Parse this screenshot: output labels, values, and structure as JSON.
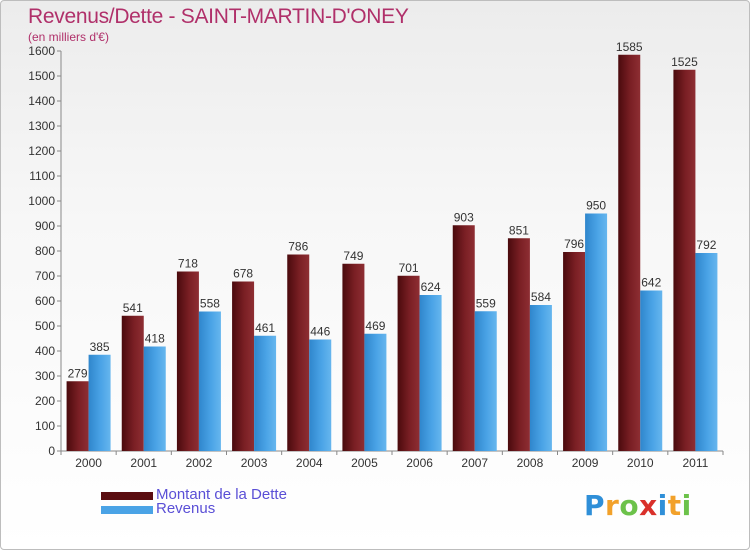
{
  "header": {
    "title": "Revenus/Dette - SAINT-MARTIN-D'ONEY",
    "subtitle": "(en milliers d'€)"
  },
  "chart_data": {
    "type": "bar",
    "title": "Revenus/Dette - SAINT-MARTIN-D'ONEY",
    "subtitle": "(en milliers d'€)",
    "categories": [
      "2000",
      "2001",
      "2002",
      "2003",
      "2004",
      "2005",
      "2006",
      "2007",
      "2008",
      "2009",
      "2010",
      "2011"
    ],
    "series": [
      {
        "name": "Montant de la Dette",
        "color": "#7a1f24",
        "values": [
          279,
          541,
          718,
          678,
          786,
          749,
          701,
          903,
          851,
          796,
          1585,
          1525
        ]
      },
      {
        "name": "Revenus",
        "color": "#4aa3e6",
        "values": [
          385,
          418,
          558,
          461,
          446,
          469,
          624,
          559,
          584,
          950,
          642,
          792
        ]
      }
    ],
    "ylim": [
      0,
      1600
    ],
    "yticks": [
      0,
      100,
      200,
      300,
      400,
      500,
      600,
      700,
      800,
      900,
      1000,
      1100,
      1200,
      1300,
      1400,
      1500,
      1600
    ],
    "grid": false,
    "legend": "bottom-left"
  },
  "legend": {
    "items": [
      {
        "label": "Montant de la Dette",
        "color": "#5a0d10"
      },
      {
        "label": "Revenus",
        "color": "#4aa3e6"
      }
    ]
  },
  "logo": {
    "letters": [
      "P",
      "r",
      "o",
      "x",
      "i",
      "t",
      "i"
    ],
    "colors": [
      "#2f8fd8",
      "#f2a12a",
      "#6cc24a",
      "#d9302a",
      "#2f8fd8",
      "#f2a12a",
      "#6cc24a"
    ]
  }
}
